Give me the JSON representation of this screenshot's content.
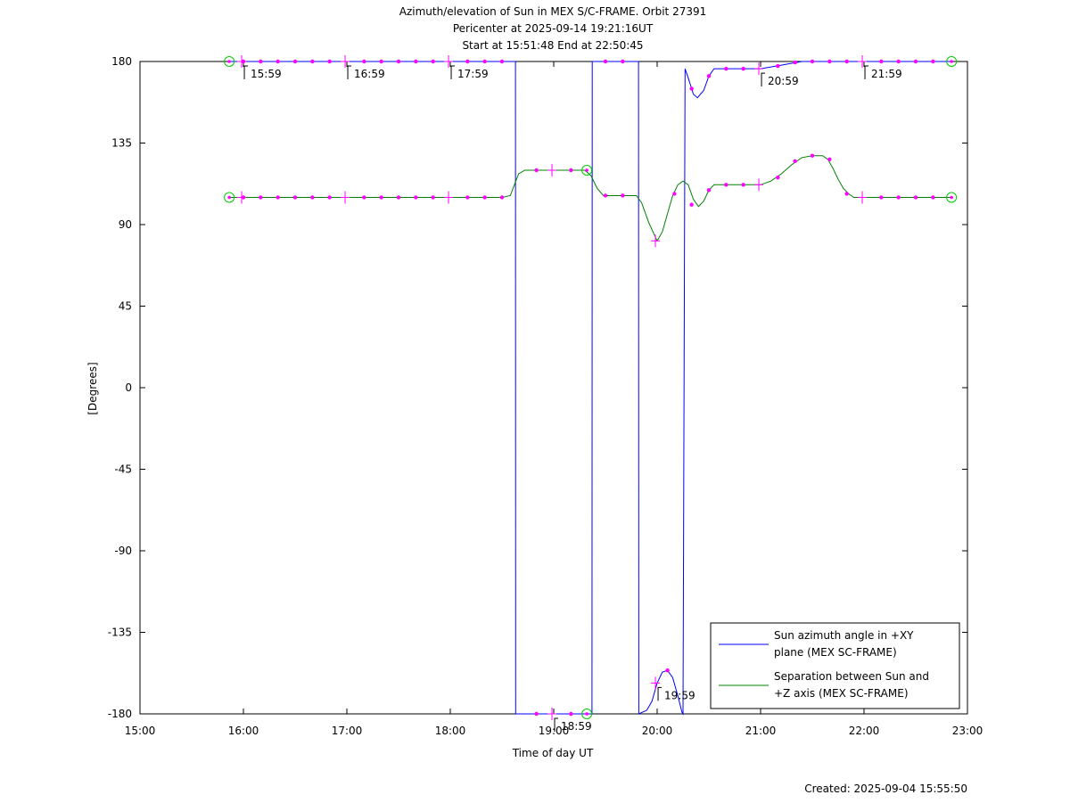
{
  "chart_data": {
    "type": "line",
    "title_lines": [
      "Azimuth/elevation of Sun in MEX S/C-FRAME.  Orbit 27391",
      "Pericenter at 2025-09-14 19:21:16UT",
      "Start at 15:51:48 End at 22:50:45"
    ],
    "xlabel": "Time of day UT",
    "ylabel": "[Degrees]",
    "xlim": [
      15,
      23
    ],
    "ylim": [
      -180,
      180
    ],
    "x_ticks": [
      {
        "v": 15,
        "label": "15:00"
      },
      {
        "v": 16,
        "label": "16:00"
      },
      {
        "v": 17,
        "label": "17:00"
      },
      {
        "v": 18,
        "label": "18:00"
      },
      {
        "v": 19,
        "label": "19:00"
      },
      {
        "v": 20,
        "label": "20:00"
      },
      {
        "v": 21,
        "label": "21:00"
      },
      {
        "v": 22,
        "label": "22:00"
      },
      {
        "v": 23,
        "label": "23:00"
      }
    ],
    "y_ticks": [
      {
        "v": 180,
        "label": "180"
      },
      {
        "v": 135,
        "label": "135"
      },
      {
        "v": 90,
        "label": "90"
      },
      {
        "v": 45,
        "label": "45"
      },
      {
        "v": 0,
        "label": "0"
      },
      {
        "v": -45,
        "label": "-45"
      },
      {
        "v": -90,
        "label": "-90"
      },
      {
        "v": -135,
        "label": "-135"
      },
      {
        "v": -180,
        "label": "-180"
      }
    ],
    "hour_marks": [
      {
        "x": 15.983,
        "y": 180,
        "label": "15:59"
      },
      {
        "x": 16.983,
        "y": 180,
        "label": "16:59"
      },
      {
        "x": 17.983,
        "y": 180,
        "label": "17:59"
      },
      {
        "x": 18.983,
        "y": -180,
        "label": "18:59"
      },
      {
        "x": 19.983,
        "y": -163,
        "label": "19:59"
      },
      {
        "x": 20.983,
        "y": 176,
        "label": "20:59"
      },
      {
        "x": 21.983,
        "y": 180,
        "label": "21:59"
      }
    ],
    "series": [
      {
        "name": "Sun azimuth angle in +XY plane (MEX SC-FRAME)",
        "color": "#0000ff",
        "x": [
          15.863,
          16.0,
          16.5,
          17.0,
          17.5,
          18.0,
          18.5,
          18.63,
          18.632,
          18.65,
          19.0,
          19.35,
          19.37,
          19.372,
          19.5,
          19.8,
          19.82,
          19.822,
          19.9,
          19.95,
          20.0,
          20.05,
          20.1,
          20.15,
          20.2,
          20.24,
          20.25,
          20.27,
          20.3,
          20.35,
          20.39,
          20.45,
          20.5,
          20.55,
          20.6,
          20.8,
          21.0,
          21.2,
          21.4,
          21.6,
          22.0,
          22.5,
          22.846
        ],
        "y": [
          180,
          180,
          180,
          180,
          180,
          180,
          180,
          180,
          -180,
          -180,
          -180,
          -180,
          -180,
          180,
          180,
          180,
          180,
          -180,
          -178,
          -173,
          -163,
          -157,
          -156,
          -160,
          -170,
          -179,
          -180,
          176,
          171,
          162,
          160,
          164,
          172,
          176,
          176,
          176,
          176,
          178,
          180,
          180,
          180,
          180,
          180
        ]
      },
      {
        "name": "Separation between Sun and +Z axis (MEX SC-FRAME)",
        "color": "#008000",
        "x": [
          15.863,
          16.0,
          16.5,
          17.0,
          17.5,
          18.0,
          18.5,
          18.58,
          18.62,
          18.66,
          18.72,
          19.0,
          19.3,
          19.36,
          19.42,
          19.48,
          19.6,
          19.8,
          19.85,
          19.92,
          20.0,
          20.05,
          20.1,
          20.15,
          20.2,
          20.25,
          20.3,
          20.35,
          20.4,
          20.45,
          20.5,
          20.55,
          20.6,
          20.8,
          21.0,
          21.1,
          21.2,
          21.3,
          21.4,
          21.5,
          21.6,
          21.65,
          21.7,
          21.75,
          21.8,
          21.85,
          21.9,
          22.0,
          22.5,
          22.846
        ],
        "y": [
          105,
          105,
          105,
          105,
          105,
          105,
          105,
          106,
          112,
          118,
          120,
          120,
          120,
          117,
          110,
          106,
          106,
          106,
          102,
          91,
          81,
          86,
          96,
          106,
          112,
          114,
          112,
          104,
          100,
          103,
          109,
          112,
          112,
          112,
          112,
          114,
          118,
          123,
          127,
          128,
          128,
          126,
          121,
          115,
          110,
          107,
          105,
          105,
          105,
          105
        ]
      }
    ],
    "markers": {
      "color": "#ff00ff",
      "blue_points": [
        [
          16.0,
          180
        ],
        [
          16.167,
          180
        ],
        [
          16.333,
          180
        ],
        [
          16.5,
          180
        ],
        [
          16.667,
          180
        ],
        [
          16.833,
          180
        ],
        [
          17.167,
          180
        ],
        [
          17.333,
          180
        ],
        [
          17.5,
          180
        ],
        [
          17.667,
          180
        ],
        [
          17.833,
          180
        ],
        [
          18.167,
          180
        ],
        [
          18.333,
          180
        ],
        [
          18.5,
          180
        ],
        [
          18.833,
          -180
        ],
        [
          19.167,
          -180
        ],
        [
          19.5,
          180
        ],
        [
          19.667,
          180
        ],
        [
          20.1,
          -156
        ],
        [
          20.333,
          165
        ],
        [
          20.5,
          172
        ],
        [
          20.667,
          176
        ],
        [
          20.833,
          176
        ],
        [
          21.167,
          177.5
        ],
        [
          21.333,
          179.5
        ],
        [
          21.5,
          180
        ],
        [
          21.667,
          180
        ],
        [
          21.833,
          180
        ],
        [
          22.167,
          180
        ],
        [
          22.333,
          180
        ],
        [
          22.5,
          180
        ],
        [
          22.667,
          180
        ]
      ],
      "green_points": [
        [
          16.0,
          105
        ],
        [
          16.167,
          105
        ],
        [
          16.333,
          105
        ],
        [
          16.5,
          105
        ],
        [
          16.667,
          105
        ],
        [
          16.833,
          105
        ],
        [
          17.167,
          105
        ],
        [
          17.333,
          105
        ],
        [
          17.5,
          105
        ],
        [
          17.667,
          105
        ],
        [
          17.833,
          105
        ],
        [
          18.167,
          105
        ],
        [
          18.333,
          105
        ],
        [
          18.5,
          105
        ],
        [
          18.833,
          120
        ],
        [
          19.167,
          120
        ],
        [
          19.5,
          106
        ],
        [
          19.667,
          106
        ],
        [
          20.167,
          107
        ],
        [
          20.333,
          101
        ],
        [
          20.5,
          109
        ],
        [
          20.667,
          112
        ],
        [
          20.833,
          112
        ],
        [
          21.167,
          116
        ],
        [
          21.333,
          125
        ],
        [
          21.5,
          128
        ],
        [
          21.667,
          126
        ],
        [
          21.833,
          107
        ],
        [
          22.167,
          105
        ],
        [
          22.333,
          105
        ],
        [
          22.5,
          105
        ],
        [
          22.667,
          105
        ]
      ],
      "crosses": [
        [
          15.983,
          180
        ],
        [
          16.983,
          180
        ],
        [
          17.983,
          180
        ],
        [
          18.983,
          -180
        ],
        [
          19.983,
          -163
        ],
        [
          20.983,
          176
        ],
        [
          21.983,
          180
        ],
        [
          15.983,
          105
        ],
        [
          16.983,
          105
        ],
        [
          17.983,
          105
        ],
        [
          18.983,
          120
        ],
        [
          19.983,
          81
        ],
        [
          20.983,
          112
        ],
        [
          21.983,
          105
        ]
      ],
      "circles": [
        [
          15.863,
          180
        ],
        [
          15.863,
          105
        ],
        [
          19.32,
          -180
        ],
        [
          19.32,
          120
        ],
        [
          22.846,
          180
        ],
        [
          22.846,
          105
        ]
      ]
    },
    "legend": {
      "placement": "bottom-right",
      "entries": [
        {
          "lines": [
            "Sun azimuth angle in +XY",
            "plane (MEX SC-FRAME)"
          ],
          "color": "#0000ff"
        },
        {
          "lines": [
            "Separation between Sun and",
            "+Z axis (MEX SC-FRAME)"
          ],
          "color": "#008000"
        }
      ]
    },
    "grid": false
  },
  "footer": {
    "created": "Created: 2025-09-04 15:55:50"
  }
}
